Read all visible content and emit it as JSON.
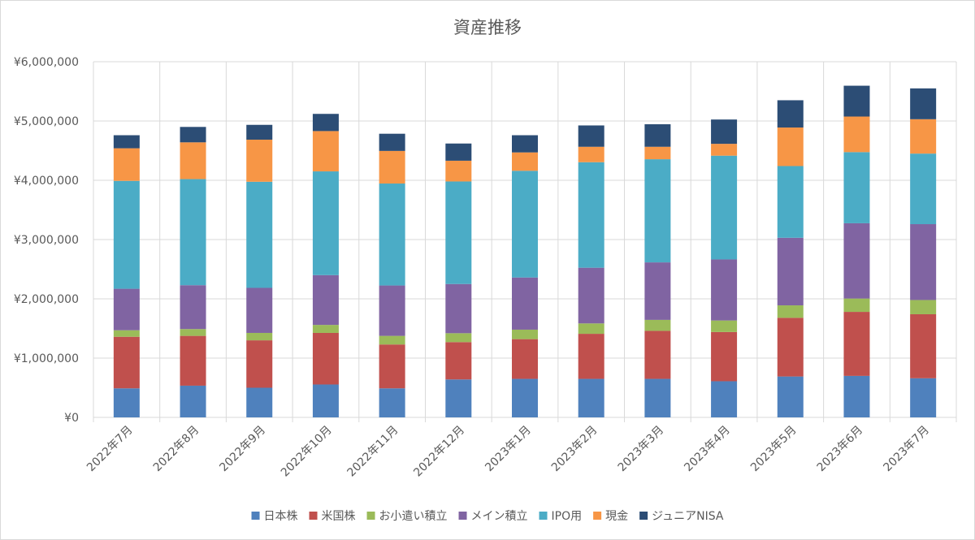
{
  "chart_data": {
    "type": "bar",
    "stacked": true,
    "title": "資産推移",
    "xlabel": "",
    "ylabel": "",
    "ylim": [
      0,
      6000000
    ],
    "yticks": [
      {
        "value": 0,
        "label": "¥0"
      },
      {
        "value": 1000000,
        "label": "¥1,000,000"
      },
      {
        "value": 2000000,
        "label": "¥2,000,000"
      },
      {
        "value": 3000000,
        "label": "¥3,000,000"
      },
      {
        "value": 4000000,
        "label": "¥4,000,000"
      },
      {
        "value": 5000000,
        "label": "¥5,000,000"
      },
      {
        "value": 6000000,
        "label": "¥6,000,000"
      }
    ],
    "grid": true,
    "legend_position": "bottom",
    "categories": [
      "2022年7月",
      "2022年8月",
      "2022年9月",
      "2022年10月",
      "2022年11月",
      "2022年12月",
      "2023年1月",
      "2023年2月",
      "2023年3月",
      "2023年4月",
      "2023年5月",
      "2023年6月",
      "2023年7月"
    ],
    "series": [
      {
        "name": "日本株",
        "color": "#4f81bd",
        "values": [
          490000,
          535000,
          500000,
          555000,
          490000,
          640000,
          650000,
          650000,
          650000,
          610000,
          690000,
          700000,
          660000
        ]
      },
      {
        "name": "米国株",
        "color": "#c0504d",
        "values": [
          870000,
          840000,
          800000,
          870000,
          740000,
          630000,
          670000,
          760000,
          810000,
          830000,
          990000,
          1080000,
          1080000
        ]
      },
      {
        "name": "お小遣い積立",
        "color": "#9bbb59",
        "values": [
          110000,
          115000,
          125000,
          135000,
          145000,
          150000,
          160000,
          175000,
          185000,
          195000,
          210000,
          225000,
          240000
        ]
      },
      {
        "name": "メイン積立",
        "color": "#8064a2",
        "values": [
          700000,
          740000,
          760000,
          840000,
          850000,
          830000,
          880000,
          940000,
          970000,
          1030000,
          1140000,
          1270000,
          1280000
        ]
      },
      {
        "name": "IPO用",
        "color": "#4bacc6",
        "values": [
          1820000,
          1790000,
          1790000,
          1750000,
          1720000,
          1730000,
          1800000,
          1780000,
          1740000,
          1750000,
          1210000,
          1200000,
          1190000
        ]
      },
      {
        "name": "現金",
        "color": "#f79646",
        "values": [
          550000,
          620000,
          710000,
          680000,
          550000,
          350000,
          310000,
          260000,
          210000,
          200000,
          650000,
          600000,
          580000
        ]
      },
      {
        "name": "ジュニアNISA",
        "color": "#2c4d75",
        "values": [
          220000,
          260000,
          250000,
          290000,
          290000,
          290000,
          290000,
          360000,
          380000,
          410000,
          460000,
          520000,
          520000
        ]
      }
    ]
  }
}
